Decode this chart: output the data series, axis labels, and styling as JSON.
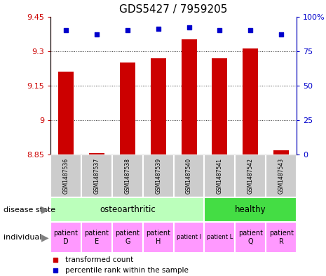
{
  "title": "GDS5427 / 7959205",
  "samples": [
    "GSM1487536",
    "GSM1487537",
    "GSM1487538",
    "GSM1487539",
    "GSM1487540",
    "GSM1487541",
    "GSM1487542",
    "GSM1487543"
  ],
  "transformed_count": [
    9.21,
    8.856,
    9.25,
    9.27,
    9.35,
    9.27,
    9.31,
    8.87
  ],
  "percentile_rank": [
    90,
    87,
    90,
    91,
    92,
    90,
    90,
    87
  ],
  "ylim_left": [
    8.85,
    9.45
  ],
  "ylim_right": [
    0,
    100
  ],
  "yticks_left": [
    8.85,
    9.0,
    9.15,
    9.3,
    9.45
  ],
  "yticks_right": [
    0,
    25,
    50,
    75,
    100
  ],
  "ytick_labels_left": [
    "8.85",
    "9",
    "9.15",
    "9.3",
    "9.45"
  ],
  "ytick_labels_right": [
    "0",
    "25",
    "50",
    "75",
    "100%"
  ],
  "bar_color": "#cc0000",
  "dot_color": "#0000cc",
  "bar_width": 0.5,
  "disease_state_groups": [
    {
      "label": "osteoarthritic",
      "start": 0,
      "end": 4,
      "color": "#bbffbb"
    },
    {
      "label": "healthy",
      "start": 5,
      "end": 7,
      "color": "#44dd44"
    }
  ],
  "individual_labels": [
    "patient\nD",
    "patient\nE",
    "patient\nG",
    "patient\nH",
    "patient I",
    "patient L",
    "patient\nQ",
    "patient\nR"
  ],
  "individual_colors": [
    "#ffffff",
    "#ffffff",
    "#ffffff",
    "#ffffff",
    "#ff99ff",
    "#ff99ff",
    "#ff99ff",
    "#ff99ff"
  ],
  "gsm_bg_color": "#cccccc",
  "dotted_grid_color": "#333333",
  "left_axis_color": "#cc0000",
  "right_axis_color": "#0000cc",
  "legend_red_label": "transformed count",
  "legend_blue_label": "percentile rank within the sample",
  "disease_state_label": "disease state",
  "individual_label": "individual"
}
